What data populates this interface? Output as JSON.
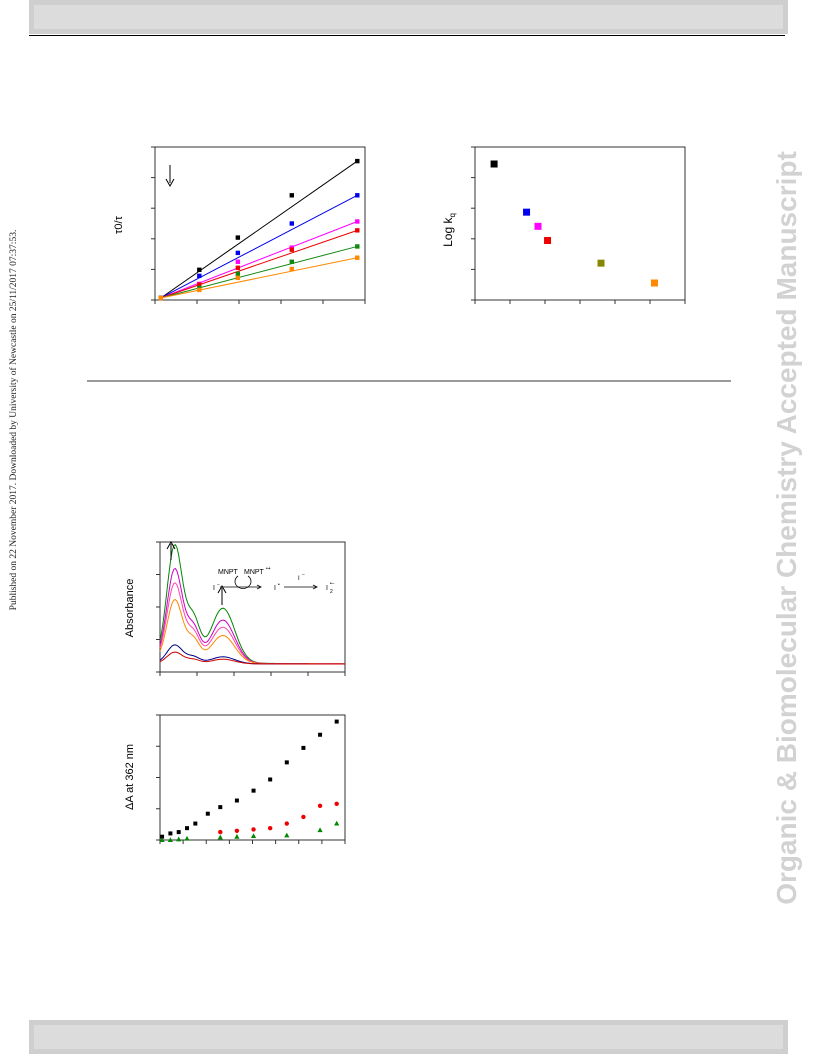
{
  "page": {
    "side_banner": "Organic & Biomolecular Chemistry Accepted Manuscript",
    "published_line": "Published on 22 November 2017. Downloaded by University of Newcastle on 25/11/2017 07:37:53."
  },
  "chart_data": [
    {
      "type": "scatter",
      "ylabel": "τ0/τ",
      "x_points": [
        0,
        1,
        2,
        3.4,
        5.1
      ],
      "series": [
        {
          "color": "#000000",
          "values": [
            1.0,
            1.7,
            2.5,
            3.55,
            4.4
          ]
        },
        {
          "color": "#0000ee",
          "values": [
            1.0,
            1.55,
            2.12,
            2.85,
            3.55
          ]
        },
        {
          "color": "#ff00ff",
          "values": [
            1.0,
            1.35,
            1.9,
            2.25,
            2.9
          ]
        },
        {
          "color": "#ee0000",
          "values": [
            1.0,
            1.33,
            1.75,
            2.2,
            2.68
          ]
        },
        {
          "color": "#118811",
          "values": [
            1.0,
            1.25,
            1.6,
            1.9,
            2.28
          ]
        },
        {
          "color": "#ff8800",
          "values": [
            1.0,
            1.2,
            1.5,
            1.72,
            2.0
          ]
        }
      ],
      "annotation": "arrow-down"
    },
    {
      "type": "scatter",
      "ylabel": "Log k",
      "ylabel_subscript": "q",
      "points": [
        {
          "x": 0.5,
          "y": 10.4,
          "color": "#000000"
        },
        {
          "x": 1.35,
          "y": 9.55,
          "color": "#0000ee"
        },
        {
          "x": 1.65,
          "y": 9.3,
          "color": "#ff00ff"
        },
        {
          "x": 1.9,
          "y": 9.05,
          "color": "#ee0000"
        },
        {
          "x": 3.3,
          "y": 8.65,
          "color": "#888800"
        },
        {
          "x": 4.7,
          "y": 8.3,
          "color": "#ff8800"
        }
      ]
    },
    {
      "type": "line",
      "ylabel": "Absorbance",
      "series": [
        {
          "color": "#008800",
          "peak1": 1.0,
          "peak2": 0.47
        },
        {
          "color": "#cc00cc",
          "peak1": 0.8,
          "peak2": 0.37
        },
        {
          "color": "#ff44aa",
          "peak1": 0.68,
          "peak2": 0.31
        },
        {
          "color": "#ff8800",
          "peak1": 0.54,
          "peak2": 0.24
        },
        {
          "color": "#000088",
          "peak1": 0.16,
          "peak2": 0.06
        },
        {
          "color": "#cc0000",
          "peak1": 0.1,
          "peak2": 0.04
        }
      ],
      "inset": {
        "top_left": "MNPT",
        "top_right": "MNPT",
        "top_right_sup": "•+",
        "mid_left": "I",
        "mid_left_sup": "−",
        "mid_center": "I",
        "mid_center_sup": "•",
        "right_label": "I",
        "right_label_sup": "−",
        "right_result": "I",
        "right_result_sub": "2",
        "right_result_sup": "•−"
      }
    },
    {
      "type": "scatter",
      "ylabel": "ΔA at 362 nm",
      "series": [
        {
          "color": "#000000",
          "marker": "square",
          "x": [
            0,
            0.4,
            0.8,
            1.2,
            1.6,
            2.2,
            2.8,
            3.6,
            4.4,
            5.2,
            6.0,
            6.8,
            7.6,
            8.4
          ],
          "y": [
            0.005,
            0.01,
            0.012,
            0.018,
            0.025,
            0.04,
            0.05,
            0.06,
            0.075,
            0.092,
            0.118,
            0.14,
            0.16,
            0.18
          ]
        },
        {
          "color": "#ee0000",
          "marker": "circle",
          "x": [
            2.8,
            3.6,
            4.4,
            5.2,
            6.0,
            6.8,
            7.6,
            8.4
          ],
          "y": [
            0.012,
            0.014,
            0.016,
            0.018,
            0.025,
            0.035,
            0.052,
            0.055
          ]
        },
        {
          "color": "#008800",
          "marker": "triangle",
          "x": [
            0,
            0.4,
            0.8,
            1.2,
            2.8,
            3.6,
            4.4,
            6.0,
            7.6,
            8.4
          ],
          "y": [
            0.0,
            0.0,
            0.001,
            0.002,
            0.004,
            0.005,
            0.006,
            0.007,
            0.015,
            0.025
          ]
        }
      ]
    }
  ]
}
